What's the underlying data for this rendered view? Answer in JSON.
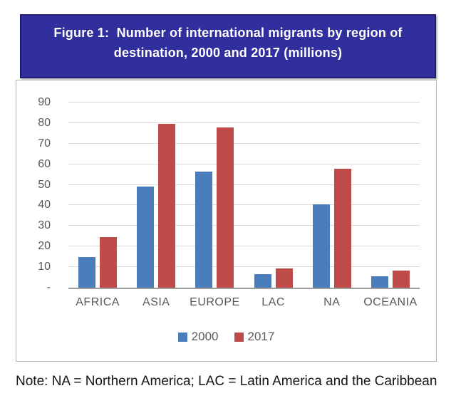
{
  "figure": {
    "title_line1": "Figure 1:  Number of international migrants by region of",
    "title_line2": "destination, 2000 and 2017 (millions)"
  },
  "note": "Note: NA = Northern America; LAC = Latin America and the Caribbean",
  "colors": {
    "banner_background": "#312f9d",
    "banner_border": "#1d1b6e",
    "series_2000": "#4b7dbd",
    "series_2017": "#bf4b48",
    "gridline": "#d9d9d9",
    "axis_line": "#9e9e9e",
    "tick_text": "#595959",
    "frame_border": "#b5b5b5"
  },
  "chart_data": {
    "type": "bar",
    "title": "Figure 1: Number of international migrants by region of destination, 2000 and 2017 (millions)",
    "categories": [
      "AFRICA",
      "ASIA",
      "EUROPE",
      "LAC",
      "NA",
      "OCEANIA"
    ],
    "series": [
      {
        "name": "2000",
        "color": "#4b7dbd",
        "values": [
          14.8,
          49.3,
          56.3,
          6.6,
          40.4,
          5.4
        ]
      },
      {
        "name": "2017",
        "color": "#bf4b48",
        "values": [
          24.7,
          79.6,
          77.9,
          9.5,
          57.7,
          8.4
        ]
      }
    ],
    "xlabel": "",
    "ylabel": "",
    "ylim": [
      0,
      90
    ],
    "yticks": [
      {
        "value": 90,
        "label": "90"
      },
      {
        "value": 80,
        "label": "80"
      },
      {
        "value": 70,
        "label": "70"
      },
      {
        "value": 60,
        "label": "60"
      },
      {
        "value": 50,
        "label": "50"
      },
      {
        "value": 40,
        "label": "40"
      },
      {
        "value": 30,
        "label": "30"
      },
      {
        "value": 20,
        "label": "20"
      },
      {
        "value": 10,
        "label": "10"
      },
      {
        "value": 0,
        "label": "-"
      }
    ],
    "grid": true,
    "legend_position": "bottom"
  }
}
